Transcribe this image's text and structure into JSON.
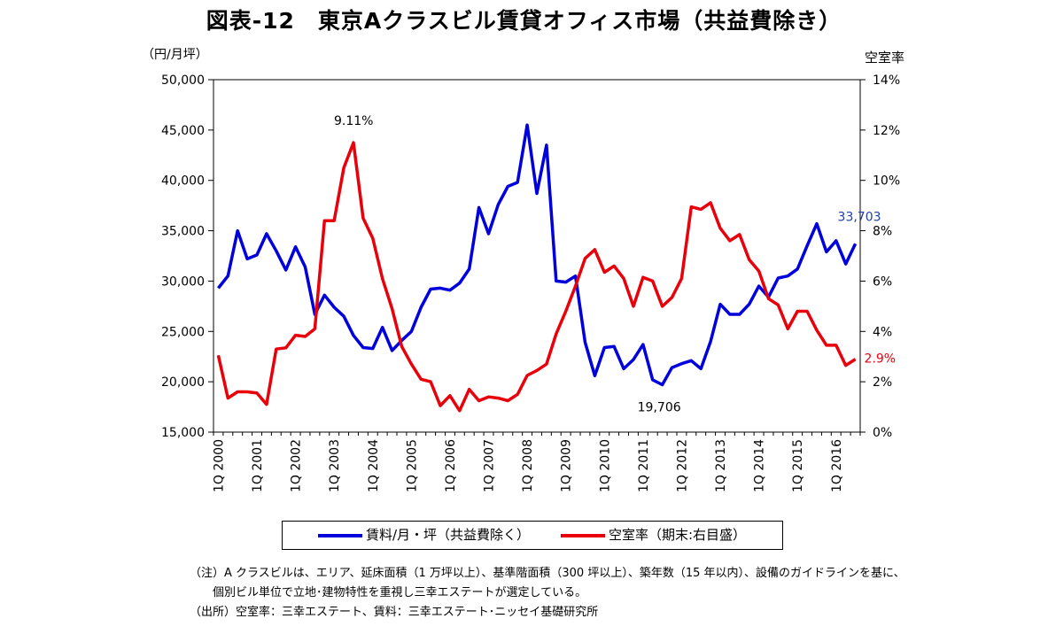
{
  "title": "図表-12　東京Aクラスビル賃貸オフィス市場（共益費除き）",
  "chart_data": {
    "type": "line",
    "y_left_label": "（円/月坪）",
    "y_right_label": "空室率",
    "y_left_range": [
      15000,
      50000
    ],
    "y_right_range": [
      0,
      14
    ],
    "y_left_ticks": [
      "15,000",
      "20,000",
      "25,000",
      "30,000",
      "35,000",
      "40,000",
      "45,000",
      "50,000"
    ],
    "y_right_ticks": [
      "0%",
      "2%",
      "4%",
      "6%",
      "8%",
      "10%",
      "12%",
      "14%"
    ],
    "x_tick_labels": [
      "1Q 2000",
      "1Q 2001",
      "1Q 2002",
      "1Q 2003",
      "1Q 2004",
      "1Q 2005",
      "1Q 2006",
      "1Q 2007",
      "1Q 2008",
      "1Q 2009",
      "1Q 2010",
      "1Q 2011",
      "1Q 2012",
      "1Q 2013",
      "1Q 2014",
      "1Q 2015",
      "1Q 2016"
    ],
    "x_start": "2000Q1",
    "x_end": "2016Q4",
    "grid": false,
    "series": [
      {
        "name": "賃料/月・坪（共益費除く）",
        "color": "#0000dd",
        "axis": "left",
        "values": [
          29300,
          30500,
          35000,
          32200,
          32600,
          34700,
          33000,
          31100,
          33400,
          31400,
          26700,
          28600,
          27400,
          26500,
          24600,
          23400,
          23300,
          25400,
          23100,
          24100,
          25000,
          27400,
          29200,
          29300,
          29100,
          29800,
          31200,
          37300,
          34700,
          37600,
          39400,
          39800,
          45500,
          38700,
          43500,
          30000,
          29900,
          30500,
          23900,
          20600,
          23400,
          23500,
          21300,
          22200,
          23700,
          20200,
          19706,
          21400,
          21800,
          22100,
          21300,
          24000,
          27700,
          26700,
          26700,
          27700,
          29500,
          28400,
          30300,
          30500,
          31200,
          33500,
          35700,
          32900,
          34000,
          31700,
          33703
        ]
      },
      {
        "name": "空室率（期末:右目盛）",
        "color": "#e8000b",
        "axis": "right",
        "values": [
          3.05,
          1.35,
          1.6,
          1.6,
          1.55,
          1.1,
          3.3,
          3.35,
          3.85,
          3.8,
          4.1,
          8.4,
          8.4,
          10.5,
          11.5,
          8.5,
          7.7,
          6.1,
          4.9,
          3.4,
          2.7,
          2.1,
          2.0,
          1.05,
          1.45,
          0.85,
          1.7,
          1.25,
          1.4,
          1.35,
          1.25,
          1.5,
          2.25,
          2.45,
          2.7,
          3.9,
          4.8,
          5.8,
          6.9,
          7.25,
          6.35,
          6.6,
          6.1,
          5.0,
          6.15,
          6.0,
          5.0,
          5.35,
          6.1,
          8.95,
          8.85,
          9.11,
          8.1,
          7.6,
          7.85,
          6.85,
          6.4,
          5.3,
          5.05,
          4.1,
          4.8,
          4.8,
          4.05,
          3.45,
          3.45,
          2.65,
          2.9
        ]
      }
    ],
    "annotations": [
      {
        "text": "33,703",
        "series": "rent",
        "color": "#1f3fa8"
      },
      {
        "text": "2.9%",
        "series": "vacancy",
        "color": "#e8000b"
      },
      {
        "text": "9.11%",
        "series": "vacancy",
        "color": "#000000"
      },
      {
        "text": "19,706",
        "series": "rent",
        "color": "#000000"
      }
    ]
  },
  "legend": {
    "rent_label": "賃料/月・坪（共益費除く）",
    "vacancy_label": "空室率（期末:右目盛）",
    "rent_color": "#0000dd",
    "vacancy_color": "#e8000b"
  },
  "notes": {
    "line1": "（注）A クラスビルは、エリア、延床面積（1 万坪以上）、基準階面積（300 坪以上）、築年数（15 年以内）、設備のガイドラインを基に、",
    "line2": "　　個別ビル単位で立地･建物特性を重視し三幸エステートが選定している。",
    "line3": "（出所）空室率：三幸エステート、賃料：三幸エステート･ニッセイ基礎研究所"
  }
}
